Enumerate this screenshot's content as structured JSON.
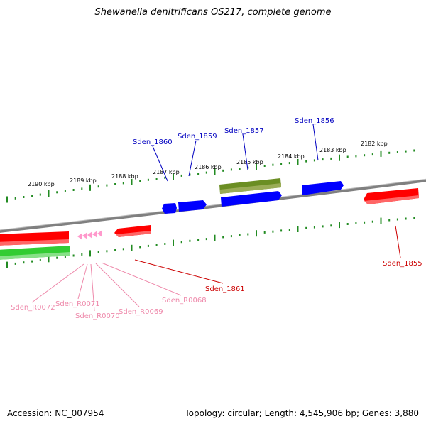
{
  "title": "Shewanella denitrificans OS217, complete genome",
  "footer": {
    "accession": "Accession: NC_007954",
    "summary": "Topology: circular; Length: 4,545,906 bp; Genes: 3,880"
  },
  "scale_labels": [
    "2190 kbp",
    "2189 kbp",
    "2188 kbp",
    "2187 kbp",
    "2186 kbp",
    "2185 kbp",
    "2184 kbp",
    "2183 kbp",
    "2182 kbp"
  ],
  "gene_labels": {
    "upper": [
      "Sden_1860",
      "Sden_1859",
      "Sden_1857",
      "Sden_1856"
    ],
    "lower_red": [
      "Sden_1861",
      "Sden_1855"
    ],
    "lower_rna": [
      "Sden_R0072",
      "Sden_R0071",
      "Sden_R0070",
      "Sden_R0069",
      "Sden_R0068"
    ]
  },
  "colors": {
    "backbone": "#808080",
    "blue_gene": "#0000ff",
    "blue_label": "#0000c0",
    "olive_gene": "#6b8e23",
    "red_gene": "#ff0000",
    "red_label": "#cc0000",
    "green_gene": "#33cc33",
    "pink_rna": "#ff99cc",
    "pink_label": "#ee88aa",
    "tick": "#228B22"
  }
}
